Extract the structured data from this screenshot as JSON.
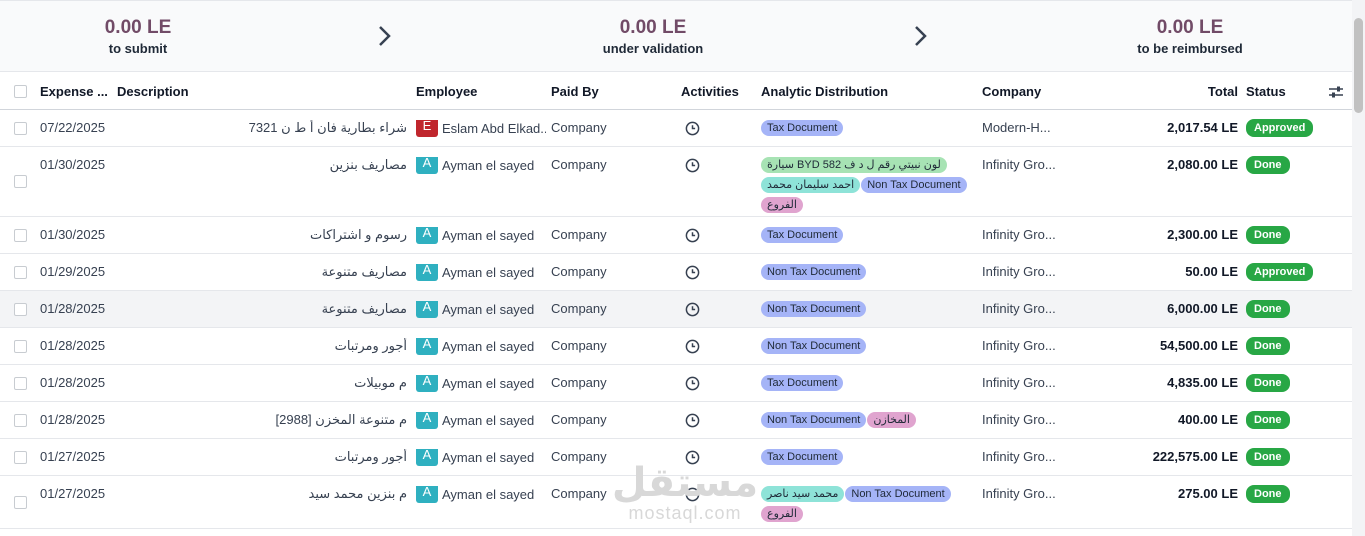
{
  "summary": [
    {
      "amount": "0.00 LE",
      "label": "to submit"
    },
    {
      "amount": "0.00 LE",
      "label": "under validation"
    },
    {
      "amount": "0.00 LE",
      "label": "to be reimbursed"
    }
  ],
  "headers": {
    "expense_date": "Expense ...",
    "description": "Description",
    "employee": "Employee",
    "paid_by": "Paid By",
    "activities": "Activities",
    "analytic": "Analytic Distribution",
    "company": "Company",
    "total": "Total",
    "status": "Status"
  },
  "colors": {
    "tax": "#a5b4f7",
    "green": "#a7e3b4",
    "teal": "#8ee3d8",
    "pink": "#e0a4cf",
    "done": "#28a745",
    "avatar_e": "#c0262d",
    "avatar_a": "#2fb0c0"
  },
  "rows": [
    {
      "date": "07/22/2025",
      "description": "شراء بطارية فان أ ط ن 7321",
      "avatar": "E",
      "employee": "Eslam Abd Elkad...",
      "paid_by": "Company",
      "tags": [
        {
          "text": "Tax Document",
          "color": "tax"
        }
      ],
      "company": "Modern-H...",
      "total": "2,017.54 LE",
      "status": "Approved"
    },
    {
      "date": "01/30/2025",
      "description": "مصاريف بنزين",
      "avatar": "A",
      "employee": "Ayman el sayed",
      "paid_by": "Company",
      "tags": [
        {
          "text": "لون نبيتي رقم ل د ف BYD 582 سيارة",
          "color": "green"
        },
        {
          "text": "احمد سليمان محمد",
          "color": "teal"
        },
        {
          "text": "Non Tax Document",
          "color": "tax"
        },
        {
          "text": "الفروع",
          "color": "pink"
        }
      ],
      "company": "Infinity Gro...",
      "total": "2,080.00 LE",
      "status": "Done"
    },
    {
      "date": "01/30/2025",
      "description": "رسوم و اشتراكات",
      "avatar": "A",
      "employee": "Ayman el sayed",
      "paid_by": "Company",
      "tags": [
        {
          "text": "Tax Document",
          "color": "tax"
        }
      ],
      "company": "Infinity Gro...",
      "total": "2,300.00 LE",
      "status": "Done"
    },
    {
      "date": "01/29/2025",
      "description": "مصاريف متنوعة",
      "avatar": "A",
      "employee": "Ayman el sayed",
      "paid_by": "Company",
      "tags": [
        {
          "text": "Non Tax Document",
          "color": "tax"
        }
      ],
      "company": "Infinity Gro...",
      "total": "50.00 LE",
      "status": "Approved"
    },
    {
      "date": "01/28/2025",
      "description": "مصاريف متنوعة",
      "avatar": "A",
      "employee": "Ayman el sayed",
      "paid_by": "Company",
      "tags": [
        {
          "text": "Non Tax Document",
          "color": "tax"
        }
      ],
      "company": "Infinity Gro...",
      "total": "6,000.00 LE",
      "status": "Done"
    },
    {
      "date": "01/28/2025",
      "description": "أجور ومرتبات",
      "avatar": "A",
      "employee": "Ayman el sayed",
      "paid_by": "Company",
      "tags": [
        {
          "text": "Non Tax Document",
          "color": "tax"
        }
      ],
      "company": "Infinity Gro...",
      "total": "54,500.00 LE",
      "status": "Done"
    },
    {
      "date": "01/28/2025",
      "description": "م موبيلات",
      "avatar": "A",
      "employee": "Ayman el sayed",
      "paid_by": "Company",
      "tags": [
        {
          "text": "Tax Document",
          "color": "tax"
        }
      ],
      "company": "Infinity Gro...",
      "total": "4,835.00 LE",
      "status": "Done"
    },
    {
      "date": "01/28/2025",
      "description": "م متنوعة المخزن [2988]",
      "avatar": "A",
      "employee": "Ayman el sayed",
      "paid_by": "Company",
      "tags": [
        {
          "text": "Non Tax Document",
          "color": "tax"
        },
        {
          "text": "المخازن",
          "color": "pink"
        }
      ],
      "company": "Infinity Gro...",
      "total": "400.00 LE",
      "status": "Done"
    },
    {
      "date": "01/27/2025",
      "description": "أجور ومرتبات",
      "avatar": "A",
      "employee": "Ayman el sayed",
      "paid_by": "Company",
      "tags": [
        {
          "text": "Tax Document",
          "color": "tax"
        }
      ],
      "company": "Infinity Gro...",
      "total": "222,575.00 LE",
      "status": "Done"
    },
    {
      "date": "01/27/2025",
      "description": "م بنزين محمد سيد",
      "avatar": "A",
      "employee": "Ayman el sayed",
      "paid_by": "Company",
      "tags": [
        {
          "text": "محمد سيد ناصر",
          "color": "teal"
        },
        {
          "text": "Non Tax Document",
          "color": "tax"
        },
        {
          "text": "الفروع",
          "color": "pink"
        }
      ],
      "company": "Infinity Gro...",
      "total": "275.00 LE",
      "status": "Done"
    }
  ],
  "watermark": {
    "main": "مستقل",
    "sub": "mostaql.com"
  }
}
